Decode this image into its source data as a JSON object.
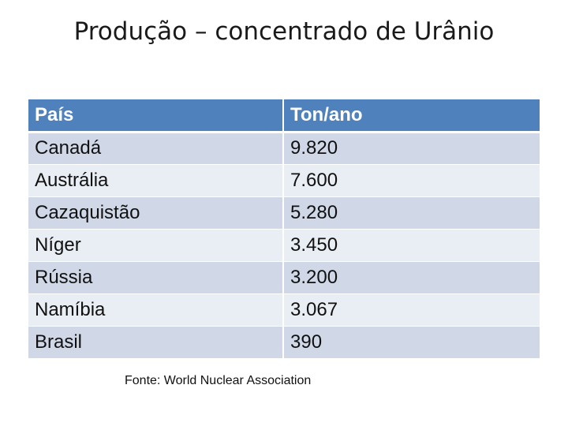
{
  "title": "Produção – concentrado de Urânio",
  "table": {
    "headers": [
      "País",
      "Ton/ano"
    ],
    "rows": [
      [
        "Canadá",
        "9.820"
      ],
      [
        "Austrália",
        "7.600"
      ],
      [
        "Cazaquistão",
        "5.280"
      ],
      [
        "Níger",
        "3.450"
      ],
      [
        "Rússia",
        "3.200"
      ],
      [
        "Namíbia",
        "3.067"
      ],
      [
        "Brasil",
        "390"
      ]
    ]
  },
  "source": "Fonte: World Nuclear Association",
  "colors": {
    "header_bg": "#4f81bd",
    "row_odd_bg": "#d0d8e8",
    "row_even_bg": "#e9edf4"
  }
}
